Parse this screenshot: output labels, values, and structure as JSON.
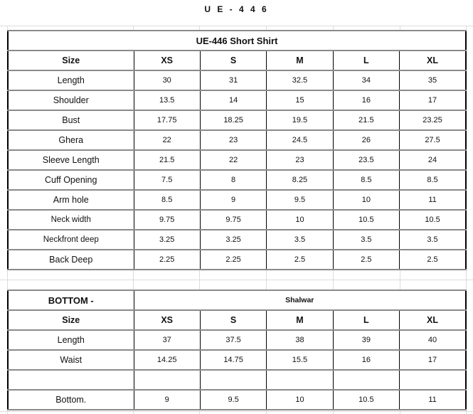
{
  "doc_title": "U E - 4 4 6",
  "shirt": {
    "title": "UE-446 Short Shirt",
    "header": [
      "Size",
      "XS",
      "S",
      "M",
      "L",
      "XL"
    ],
    "rows": [
      {
        "label": "Length",
        "values": [
          "30",
          "31",
          "32.5",
          "34",
          "35"
        ]
      },
      {
        "label": "Shoulder",
        "values": [
          "13.5",
          "14",
          "15",
          "16",
          "17"
        ]
      },
      {
        "label": "Bust",
        "values": [
          "17.75",
          "18.25",
          "19.5",
          "21.5",
          "23.25"
        ]
      },
      {
        "label": "Ghera",
        "values": [
          "22",
          "23",
          "24.5",
          "26",
          "27.5"
        ]
      },
      {
        "label": "Sleeve Length",
        "values": [
          "21.5",
          "22",
          "23",
          "23.5",
          "24"
        ]
      },
      {
        "label": "Cuff Opening",
        "values": [
          "7.5",
          "8",
          "8.25",
          "8.5",
          "8.5"
        ]
      },
      {
        "label": "Arm hole",
        "values": [
          "8.5",
          "9",
          "9.5",
          "10",
          "11"
        ]
      },
      {
        "label": "Neck width",
        "values": [
          "9.75",
          "9.75",
          "10",
          "10.5",
          "10.5"
        ]
      },
      {
        "label": "Neckfront deep",
        "values": [
          "3.25",
          "3.25",
          "3.5",
          "3.5",
          "3.5"
        ]
      },
      {
        "label": "Back Deep",
        "values": [
          "2.25",
          "2.25",
          "2.5",
          "2.5",
          "2.5"
        ]
      }
    ]
  },
  "bottom": {
    "label": "BOTTOM -",
    "type": "Shalwar",
    "header": [
      "Size",
      "XS",
      "S",
      "M",
      "L",
      "XL"
    ],
    "rows": [
      {
        "label": "Length",
        "values": [
          "37",
          "37.5",
          "38",
          "39",
          "40"
        ]
      },
      {
        "label": "Waist",
        "values": [
          "14.25",
          "14.75",
          "15.5",
          "16",
          "17"
        ]
      },
      {
        "label": "",
        "values": [
          "",
          "",
          "",
          "",
          ""
        ]
      },
      {
        "label": "Bottom.",
        "values": [
          "9",
          "9.5",
          "10",
          "10.5",
          "11"
        ]
      }
    ]
  }
}
